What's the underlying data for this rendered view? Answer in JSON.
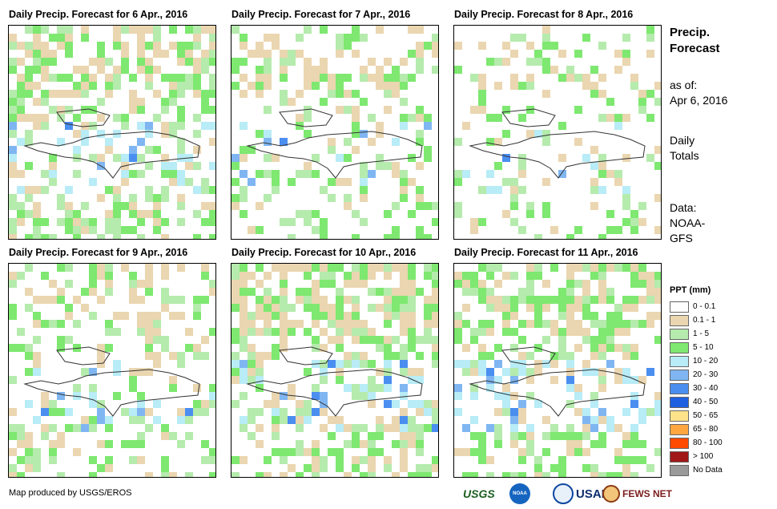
{
  "panels": [
    {
      "title": "Daily Precip. Forecast for 6 Apr., 2016",
      "seed": 11,
      "bias": 0.55,
      "wet_band": 0.3
    },
    {
      "title": "Daily Precip. Forecast for 7 Apr., 2016",
      "seed": 23,
      "bias": 0.35,
      "wet_band": 0.1
    },
    {
      "title": "Daily Precip. Forecast for 8 Apr., 2016",
      "seed": 37,
      "bias": 0.25,
      "wet_band": 0.1
    },
    {
      "title": "Daily Precip. Forecast for 9 Apr., 2016",
      "seed": 41,
      "bias": 0.4,
      "wet_band": 0.15
    },
    {
      "title": "Daily Precip. Forecast for 10 Apr., 2016",
      "seed": 53,
      "bias": 0.6,
      "wet_band": 0.35
    },
    {
      "title": "Daily Precip. Forecast for 11 Apr., 2016",
      "seed": 67,
      "bias": 0.55,
      "wet_band": 0.4
    }
  ],
  "side": {
    "title_line1": "Precip.",
    "title_line2": "Forecast",
    "asof_label": "as of:",
    "asof_date": "Apr 6, 2016",
    "totals_line1": "Daily",
    "totals_line2": "Totals",
    "data_label": "Data:",
    "data_source1": "NOAA-",
    "data_source2": "GFS"
  },
  "legend": {
    "title": "PPT (mm)",
    "items": [
      {
        "label": "0 - 0.1",
        "color": "#ffffff"
      },
      {
        "label": "0.1 - 1",
        "color": "#ead6b0"
      },
      {
        "label": "1 - 5",
        "color": "#b5ebad"
      },
      {
        "label": "5 - 10",
        "color": "#7ee870"
      },
      {
        "label": "10 - 20",
        "color": "#b8ecf6"
      },
      {
        "label": "20 - 30",
        "color": "#7fb6f2"
      },
      {
        "label": "30 - 40",
        "color": "#4a8ef0"
      },
      {
        "label": "40 - 50",
        "color": "#2060e0"
      },
      {
        "label": "50 - 65",
        "color": "#ffe38a"
      },
      {
        "label": "65 - 80",
        "color": "#ffa640"
      },
      {
        "label": "80 - 100",
        "color": "#ff4a00"
      },
      {
        "label": "> 100",
        "color": "#a01818"
      },
      {
        "label": "No Data",
        "color": "#9a9a9a"
      }
    ]
  },
  "footer": {
    "credit": "Map produced by USGS/EROS",
    "logos": [
      "USGS",
      "NOAA",
      "USAID",
      "FEWS NET"
    ]
  }
}
